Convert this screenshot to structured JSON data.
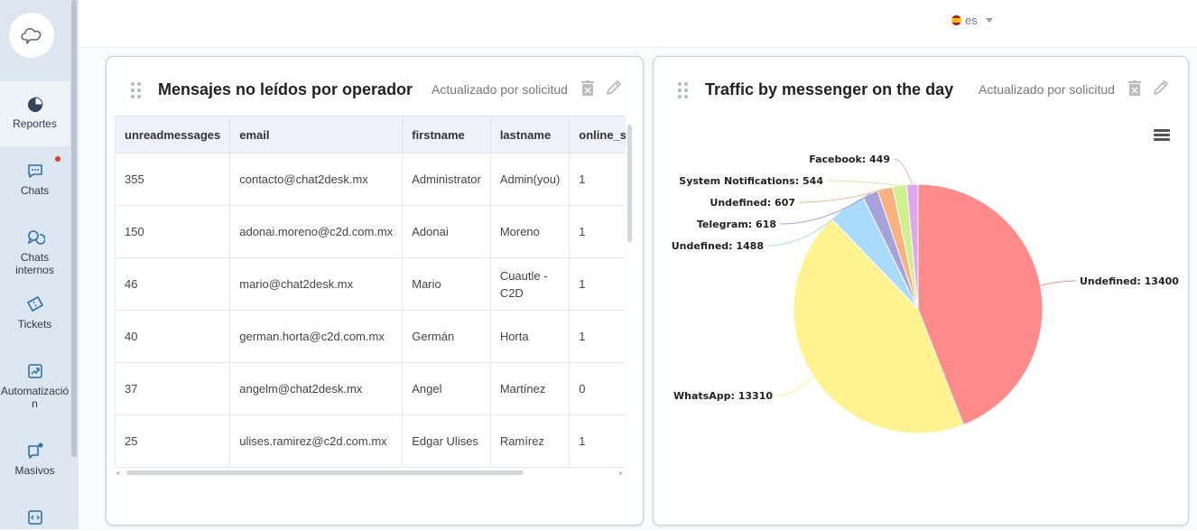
{
  "sidebar": {
    "items": [
      {
        "label": "Reportes",
        "icon": "pie-chart-icon"
      },
      {
        "label": "Chats",
        "icon": "chat-bubble-icon"
      },
      {
        "label": "Chats internos",
        "icon": "internal-chats-icon"
      },
      {
        "label": "Tickets",
        "icon": "ticket-icon"
      },
      {
        "label": "Automatizació n",
        "icon": "automation-icon"
      },
      {
        "label": "Masivos",
        "icon": "broadcast-icon"
      },
      {
        "label": "",
        "icon": "code-icon"
      }
    ]
  },
  "topbar": {
    "language": "es"
  },
  "unread_card": {
    "title": "Mensajes no leídos por operador",
    "status": "Actualizado por solicitud",
    "columns": [
      "unreadmessages",
      "email",
      "firstname",
      "lastname",
      "online_sta"
    ],
    "rows": [
      [
        "355",
        "contacto@chat2desk.mx",
        "Administrator",
        "Admin(you)",
        "1"
      ],
      [
        "150",
        "adonai.moreno@c2d.com.mx",
        "Adonai",
        "Moreno",
        "1"
      ],
      [
        "46",
        "mario@chat2desk.mx",
        "Mario",
        "Cuautle - C2D",
        "1"
      ],
      [
        "40",
        "german.horta@c2d.com.mx",
        "Germán",
        "Horta",
        "1"
      ],
      [
        "37",
        "angelm@chat2desk.mx",
        "Angel",
        "Martínez",
        "0"
      ],
      [
        "25",
        "ulises.ramirez@c2d.com.mx",
        "Edgar Ulises",
        "Ramírez",
        "1"
      ]
    ]
  },
  "traffic_card": {
    "title": "Traffic by messenger on the day",
    "status": "Actualizado por solicitud"
  },
  "chart_data": {
    "type": "pie",
    "slices": [
      {
        "label": "Undefined: 13400",
        "name": "Undefined",
        "value": 13400,
        "color": "#ff8a8a"
      },
      {
        "label": "WhatsApp: 13310",
        "name": "WhatsApp",
        "value": 13310,
        "color": "#fff38f"
      },
      {
        "label": "Undefined: 1488",
        "name": "Undefined",
        "value": 1488,
        "color": "#a9dcfb"
      },
      {
        "label": "Telegram: 618",
        "name": "Telegram",
        "value": 618,
        "color": "#a5a2dc"
      },
      {
        "label": "Undefined: 607",
        "name": "Undefined",
        "value": 607,
        "color": "#f9b27d"
      },
      {
        "label": "System Notifications: 544",
        "name": "System Notifications",
        "value": 544,
        "color": "#cdf28d"
      },
      {
        "label": "Facebook: 449",
        "name": "Facebook",
        "value": 449,
        "color": "#e2a6ee"
      }
    ]
  }
}
